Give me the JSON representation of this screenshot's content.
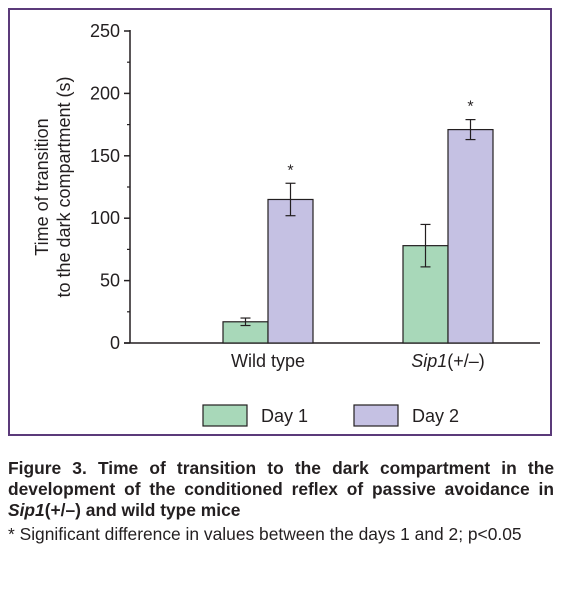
{
  "chart_data": {
    "type": "bar",
    "ylabel_lines": [
      "Time of transition",
      "to the dark compartment (s)"
    ],
    "xlabel": "",
    "ylim": [
      0,
      250
    ],
    "yticks": [
      0,
      50,
      100,
      150,
      200,
      250
    ],
    "categories": [
      {
        "name": "Wild type",
        "name_italic": "",
        "name_suffix": ""
      },
      {
        "name": "",
        "name_italic": "Sip1",
        "name_suffix": "(+/–)"
      }
    ],
    "series": [
      {
        "name": "Day 1",
        "color": "#a8d8b9",
        "values": [
          17,
          78
        ],
        "errors": [
          3,
          17
        ],
        "markers": [
          "",
          ""
        ]
      },
      {
        "name": "Day 2",
        "color": "#c5c1e3",
        "values": [
          115,
          171
        ],
        "errors": [
          13,
          8
        ],
        "markers": [
          "*",
          "*"
        ]
      }
    ],
    "legend_position": "bottom",
    "grid": false
  },
  "caption": {
    "title_part1": "Figure 3. Time of transition to the dark compartment in the development of the conditioned reflex of passive avoidance in ",
    "title_italic": "Sip1",
    "title_part2": "(+/–) and wild type mice",
    "note": "* Significant difference in values between the days 1 and 2; p<0.05"
  },
  "colors": {
    "frame": "#5b3a7a",
    "axis": "#231f20"
  }
}
